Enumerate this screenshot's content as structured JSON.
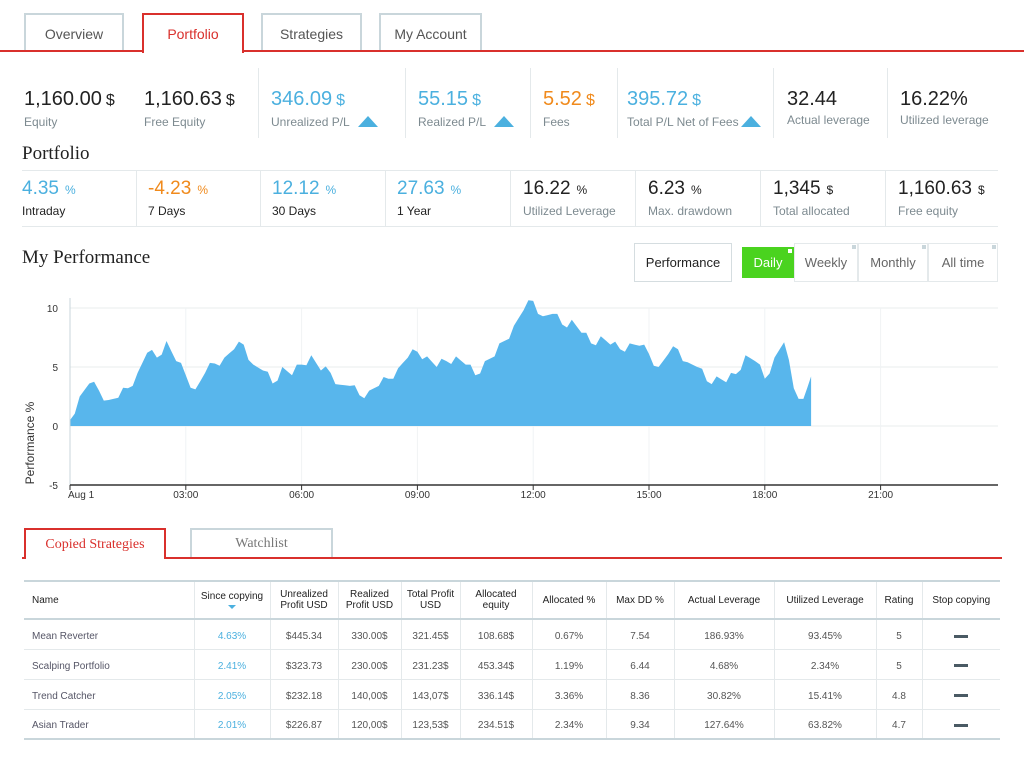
{
  "nav": {
    "tabs": [
      "Overview",
      "Portfolio",
      "Strategies",
      "My Account"
    ],
    "active": "Portfolio"
  },
  "summary": [
    {
      "value": "1,160.00",
      "unit": "$",
      "label": "Equity"
    },
    {
      "value": "1,160.63",
      "unit": "$",
      "label": "Free Equity"
    },
    {
      "value": "346.09",
      "unit": "$",
      "label": "Unrealized P/L"
    },
    {
      "value": "55.15",
      "unit": "$",
      "label": "Realized P/L"
    },
    {
      "value": "5.52",
      "unit": "$",
      "label": "Fees"
    },
    {
      "value": "395.72",
      "unit": "$",
      "label": "Total P/L Net of Fees"
    },
    {
      "value": "32.44",
      "unit": "",
      "label": "Actual leverage"
    },
    {
      "value": "16.22%",
      "unit": "",
      "label": "Utilized leverage"
    }
  ],
  "portfolio": {
    "title": "Portfolio",
    "stats": [
      {
        "value": "4.35",
        "unit": "%",
        "label": "Intraday"
      },
      {
        "value": "-4.23",
        "unit": "%",
        "label": "7 Days"
      },
      {
        "value": "12.12",
        "unit": "%",
        "label": "30 Days"
      },
      {
        "value": "27.63",
        "unit": "%",
        "label": "1 Year"
      },
      {
        "value": "16.22",
        "unit": "%",
        "label": "Utilized Leverage"
      },
      {
        "value": "6.23",
        "unit": "%",
        "label": "Max. drawdown"
      },
      {
        "value": "1,345",
        "unit": "$",
        "label": "Total allocated"
      },
      {
        "value": "1,160.63",
        "unit": "$",
        "label": "Free equity"
      }
    ]
  },
  "performance": {
    "title": "My Performance",
    "buttons": [
      "Performance",
      "Daily",
      "Weekly",
      "Monthly",
      "All time"
    ],
    "active": "Daily"
  },
  "colors": {
    "accent": "#d9302c",
    "blue": "#4bb0df",
    "orange": "#f08a1c",
    "green": "#4ad31f"
  },
  "chart_data": {
    "type": "area",
    "ylabel": "Performance %",
    "ylim": [
      -5,
      11
    ],
    "yticks": [
      "10",
      "5",
      "0",
      "-5"
    ],
    "xticks": [
      "Aug 1",
      "03:00",
      "06:00",
      "09:00",
      "12:00",
      "15:00",
      "18:00",
      "21:00"
    ],
    "x_hours": [
      0,
      0.25,
      0.5,
      0.75,
      1.0,
      1.25,
      1.5,
      1.75,
      2.0,
      2.25,
      2.5,
      2.75,
      3.0,
      3.25,
      3.5,
      3.75,
      4.0,
      4.25,
      4.5,
      4.75,
      5.0,
      5.25,
      5.5,
      5.75,
      6.0,
      6.25,
      6.5,
      6.75,
      7.0,
      7.25,
      7.5,
      7.75,
      8.0,
      8.25,
      8.5,
      8.75,
      9.0,
      9.25,
      9.5,
      9.75,
      10.0,
      10.25,
      10.5,
      10.75,
      11.0,
      11.25,
      11.5,
      11.75,
      12.0,
      12.25,
      12.5,
      12.75,
      13.0,
      13.25,
      13.5,
      13.75,
      14.0,
      14.25,
      14.5,
      14.75,
      15.0,
      15.25,
      15.5,
      15.75,
      16.0,
      16.25,
      16.5,
      16.75,
      17.0,
      17.25,
      17.5,
      17.75,
      18.0,
      18.25,
      18.5,
      18.75,
      19.0,
      19.2
    ],
    "values": [
      0.5,
      2.5,
      3.6,
      3.0,
      2.2,
      2.4,
      3.2,
      4.5,
      6.2,
      5.8,
      7.2,
      5.5,
      4.3,
      3.1,
      4.5,
      5.3,
      5.8,
      6.5,
      6.9,
      5.2,
      4.7,
      3.6,
      5.0,
      4.3,
      5.2,
      6.0,
      4.7,
      4.5,
      3.5,
      3.4,
      2.6,
      3.0,
      3.4,
      4.0,
      4.9,
      5.8,
      6.3,
      5.9,
      5.0,
      5.5,
      5.9,
      5.2,
      4.3,
      5.5,
      5.9,
      7.2,
      8.5,
      9.8,
      10.6,
      9.3,
      9.5,
      8.6,
      9.0,
      7.9,
      7.0,
      7.6,
      6.9,
      6.5,
      7.0,
      6.8,
      6.1,
      5.0,
      6.1,
      6.5,
      5.4,
      5.0,
      3.8,
      4.2,
      3.7,
      4.4,
      6.0,
      5.5,
      4.0,
      5.8,
      7.1,
      3.2,
      2.3,
      4.2
    ]
  },
  "bottom_tabs": [
    "Copied Strategies",
    "Watchlist"
  ],
  "table": {
    "headers": [
      {
        "label": "Name"
      },
      {
        "label": "Since copying"
      },
      {
        "label": "Unrealized Profit USD"
      },
      {
        "label": "Realized Profit USD"
      },
      {
        "label": "Total Profit USD"
      },
      {
        "label": "Allocated equity"
      },
      {
        "label": "Allocated %"
      },
      {
        "label": "Max DD %"
      },
      {
        "label": "Actual Leverage"
      },
      {
        "label": "Utilized Leverage"
      },
      {
        "label": "Rating"
      },
      {
        "label": "Stop copying"
      }
    ],
    "rows": [
      {
        "name": "Mean Reverter",
        "since": "4.63%",
        "unrealized": "$445.34",
        "realized": "330.00$",
        "total": "321.45$",
        "allocated": "108.68$",
        "alloc_pct": "0.67%",
        "maxdd": "7.54",
        "actual_lev": "186.93%",
        "util_lev": "93.45%",
        "rating": "5"
      },
      {
        "name": "Scalping Portfolio",
        "since": "2.41%",
        "unrealized": "$323.73",
        "realized": "230.00$",
        "total": "231.23$",
        "allocated": "453.34$",
        "alloc_pct": "1.19%",
        "maxdd": "6.44",
        "actual_lev": "4.68%",
        "util_lev": "2.34%",
        "rating": "5"
      },
      {
        "name": "Trend Catcher",
        "since": "2.05%",
        "unrealized": "$232.18",
        "realized": "140,00$",
        "total": "143,07$",
        "allocated": "336.14$",
        "alloc_pct": "3.36%",
        "maxdd": "8.36",
        "actual_lev": "30.82%",
        "util_lev": "15.41%",
        "rating": "4.8"
      },
      {
        "name": "Asian Trader",
        "since": "2.01%",
        "unrealized": "$226.87",
        "realized": "120,00$",
        "total": "123,53$",
        "allocated": "234.51$",
        "alloc_pct": "2.34%",
        "maxdd": "9.34",
        "actual_lev": "127.64%",
        "util_lev": "63.82%",
        "rating": "4.7"
      }
    ]
  }
}
